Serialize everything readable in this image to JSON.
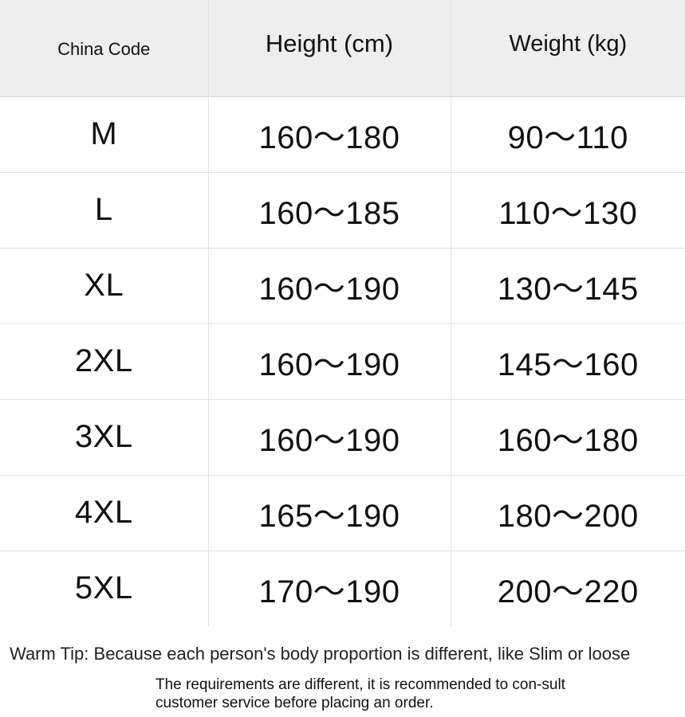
{
  "table": {
    "headers": [
      "China Code",
      "Height (cm)",
      "Weight (kg)"
    ],
    "rows": [
      [
        "M",
        "160～180",
        "90～110"
      ],
      [
        "L",
        "160～185",
        "110～130"
      ],
      [
        "XL",
        "160～190",
        "130～145"
      ],
      [
        "2XL",
        "160～190",
        "145～160"
      ],
      [
        "3XL",
        "160～190",
        "160～180"
      ],
      [
        "4XL",
        "165～190",
        "180～200"
      ],
      [
        "5XL",
        "170～190",
        "200～220"
      ]
    ]
  },
  "tip": {
    "line1": "Warm Tip: Because each person's body proportion is different, like Slim or loose",
    "line2": "The requirements are different, it is recommended to con-sult customer service before placing an order."
  },
  "colors": {
    "header_bg": "#eeeeee",
    "grid_line": "#e2e2e2",
    "text": "#111111"
  }
}
